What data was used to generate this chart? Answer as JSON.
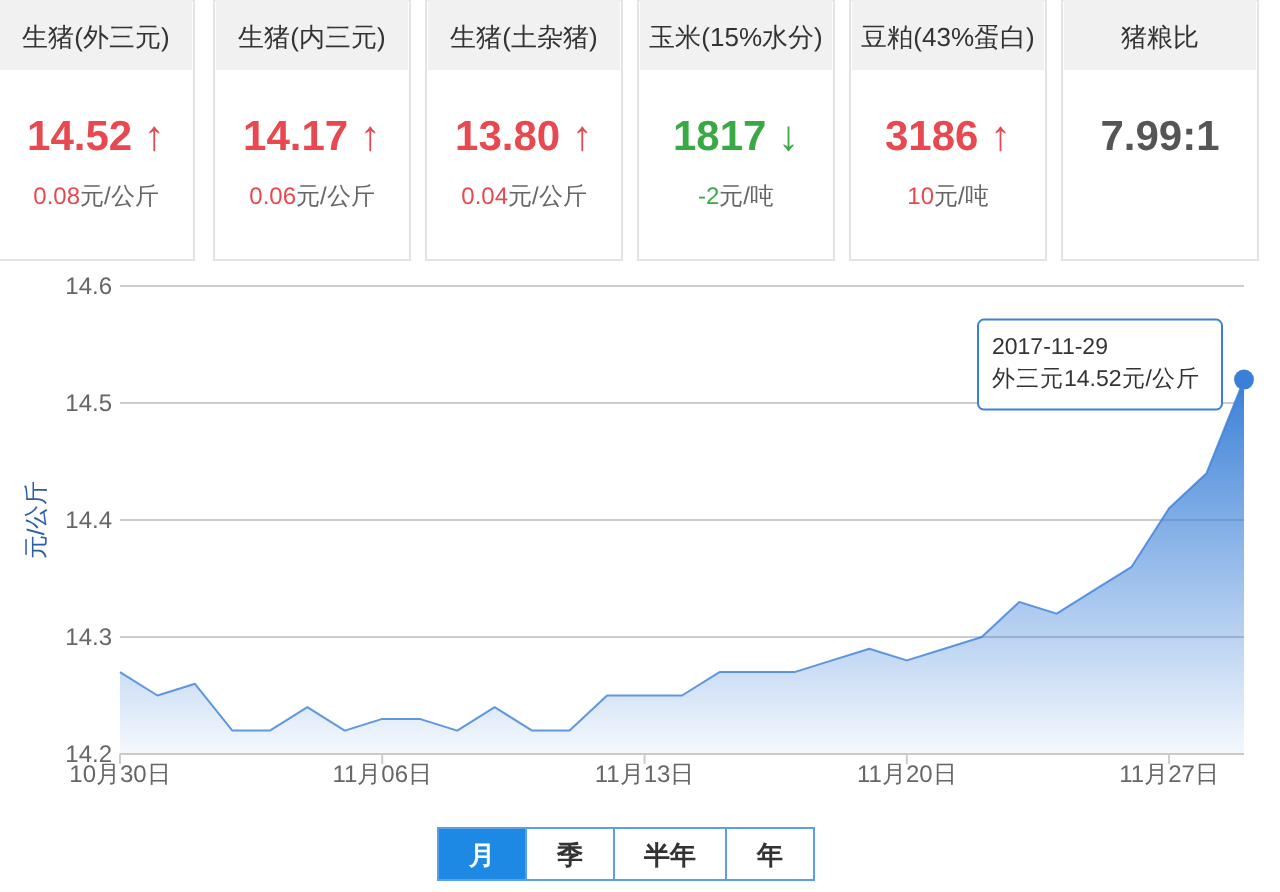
{
  "chart_data": [
    {
      "type": "other",
      "title": "生猪(外三元)",
      "annotations": [
        "14.52 ↑",
        "0.08元/公斤"
      ],
      "color": "#e8484f"
    },
    {
      "type": "other",
      "title": "生猪(内三元)",
      "annotations": [
        "14.17 ↑",
        "0.06元/公斤"
      ],
      "color": "#e8484f"
    },
    {
      "type": "other",
      "title": "生猪(土杂猪)",
      "annotations": [
        "13.80 ↑",
        "0.04元/公斤"
      ],
      "color": "#e8484f"
    },
    {
      "type": "other",
      "title": "玉米(15%水分)",
      "annotations": [
        "1817 ↓",
        "-2元/吨"
      ],
      "color": "#3aa845"
    },
    {
      "type": "other",
      "title": "豆粕(43%蛋白)",
      "annotations": [
        "3186 ↑",
        "10元/吨"
      ],
      "color": "#e8484f"
    },
    {
      "type": "other",
      "title": "猪粮比",
      "annotations": [
        "7.99:1"
      ],
      "color": "#555555"
    },
    {
      "type": "area",
      "ylabel": "元/公斤",
      "x": [
        "2017-10-30",
        "2017-10-31",
        "2017-11-01",
        "2017-11-02",
        "2017-11-03",
        "2017-11-04",
        "2017-11-05",
        "2017-11-06",
        "2017-11-07",
        "2017-11-08",
        "2017-11-09",
        "2017-11-10",
        "2017-11-11",
        "2017-11-12",
        "2017-11-13",
        "2017-11-14",
        "2017-11-15",
        "2017-11-16",
        "2017-11-17",
        "2017-11-18",
        "2017-11-19",
        "2017-11-20",
        "2017-11-21",
        "2017-11-22",
        "2017-11-23",
        "2017-11-24",
        "2017-11-25",
        "2017-11-26",
        "2017-11-27",
        "2017-11-28",
        "2017-11-29"
      ],
      "series": [
        {
          "color": "#3a80d8",
          "values": [
            14.27,
            14.25,
            14.26,
            14.22,
            14.22,
            14.24,
            14.22,
            14.23,
            14.23,
            14.22,
            14.24,
            14.22,
            14.22,
            14.25,
            14.25,
            14.25,
            14.27,
            14.27,
            14.27,
            14.28,
            14.29,
            14.28,
            14.29,
            14.3,
            14.33,
            14.32,
            14.34,
            14.36,
            14.41,
            14.44,
            14.52
          ]
        }
      ],
      "xlim": [
        "2017-10-30",
        "2017-11-29"
      ],
      "xticks": [
        {
          "value": "2017-10-30",
          "label": "10月30日"
        },
        {
          "value": "2017-11-06",
          "label": "11月06日"
        },
        {
          "value": "2017-11-13",
          "label": "11月13日"
        },
        {
          "value": "2017-11-20",
          "label": "11月20日"
        },
        {
          "value": "2017-11-27",
          "label": "11月27日"
        }
      ],
      "ylim": [
        14.2,
        14.6
      ],
      "yticks": [
        14.2,
        14.3,
        14.4,
        14.5,
        14.6
      ],
      "grid": "y",
      "annotations": [
        {
          "text": "2017-11-29\n外三元14.52元/公斤",
          "x": "2017-11-29",
          "y": 14.52
        },
        "月",
        "季",
        "半年",
        "年"
      ]
    }
  ]
}
